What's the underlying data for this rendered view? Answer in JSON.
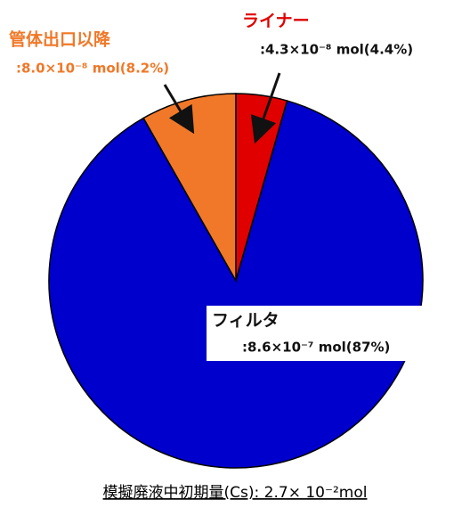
{
  "chart_data": {
    "type": "pie",
    "categories": [
      "ライナー",
      "フィルタ",
      "管体出口以降"
    ],
    "values": [
      4.4,
      87,
      8.2
    ],
    "value_labels": [
      ":4.3×10⁻⁸ mol(4.4%)",
      ":8.6×10⁻⁷ mol(87%)",
      ":8.0×10⁻⁸ mol(8.2%)"
    ],
    "colors": [
      "#e00000",
      "#0000cc",
      "#f07828"
    ],
    "caption": "模擬廃液中初期量(Cs): 2.7× 10⁻²mol"
  }
}
